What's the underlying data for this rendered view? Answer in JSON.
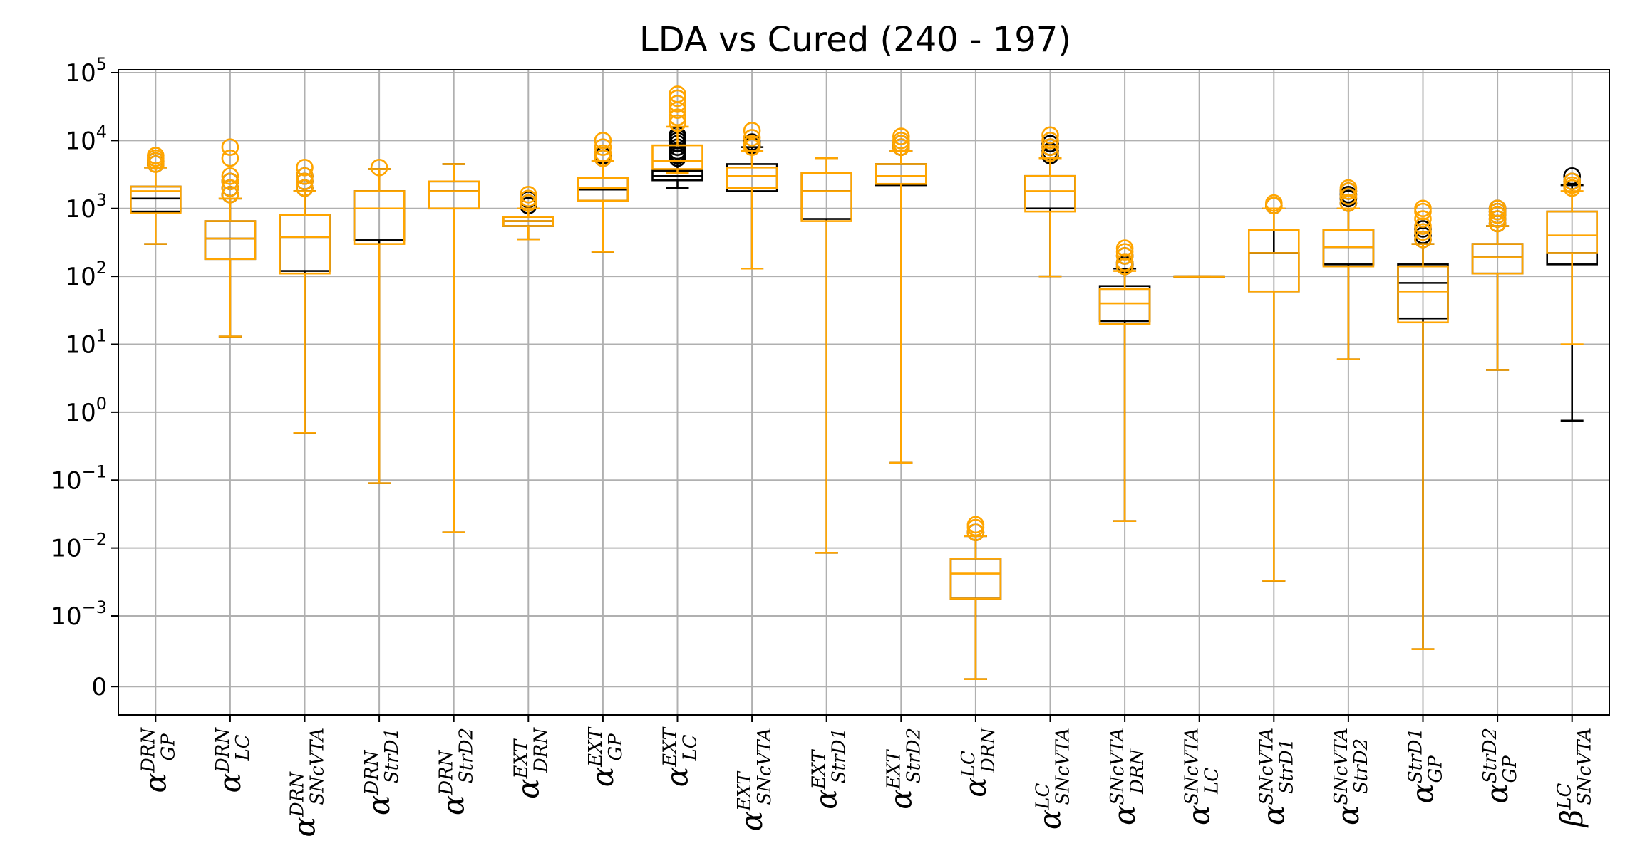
{
  "chart_data": {
    "type": "box",
    "title": "LDA vs Cured (240 - 197)",
    "xlabel": "",
    "ylabel": "",
    "yscale": "symlog",
    "ylim": [
      -0.0004,
      100000
    ],
    "grid": true,
    "colors": {
      "series_a": "#000000",
      "series_b": "#ffa500",
      "grid": "#b0b0b0"
    },
    "ytick_labels": [
      {
        "value": 100000,
        "label": "10",
        "exp": "5"
      },
      {
        "value": 10000,
        "label": "10",
        "exp": "4"
      },
      {
        "value": 1000,
        "label": "10",
        "exp": "3"
      },
      {
        "value": 100,
        "label": "10",
        "exp": "2"
      },
      {
        "value": 10,
        "label": "10",
        "exp": "1"
      },
      {
        "value": 1,
        "label": "10",
        "exp": "0"
      },
      {
        "value": 0.1,
        "label": "10",
        "exp": "−1"
      },
      {
        "value": 0.01,
        "label": "10",
        "exp": "−2"
      },
      {
        "value": 0.001,
        "label": "10",
        "exp": "−3"
      },
      {
        "value": 0,
        "label": "0",
        "exp": ""
      }
    ],
    "categories": [
      {
        "base": "α",
        "sup": "DRN",
        "sub": "GP"
      },
      {
        "base": "α",
        "sup": "DRN",
        "sub": "LC"
      },
      {
        "base": "α",
        "sup": "DRN",
        "sub": "SNcVTA"
      },
      {
        "base": "α",
        "sup": "DRN",
        "sub": "StrD1"
      },
      {
        "base": "α",
        "sup": "DRN",
        "sub": "StrD2"
      },
      {
        "base": "α",
        "sup": "EXT",
        "sub": "DRN"
      },
      {
        "base": "α",
        "sup": "EXT",
        "sub": "GP"
      },
      {
        "base": "α",
        "sup": "EXT",
        "sub": "LC"
      },
      {
        "base": "α",
        "sup": "EXT",
        "sub": "SNcVTA"
      },
      {
        "base": "α",
        "sup": "EXT",
        "sub": "StrD1"
      },
      {
        "base": "α",
        "sup": "EXT",
        "sub": "StrD2"
      },
      {
        "base": "α",
        "sup": "LC",
        "sub": "DRN"
      },
      {
        "base": "α",
        "sup": "LC",
        "sub": "SNcVTA"
      },
      {
        "base": "α",
        "sup": "SNcVTA",
        "sub": "DRN"
      },
      {
        "base": "α",
        "sup": "SNcVTA",
        "sub": "LC"
      },
      {
        "base": "α",
        "sup": "SNcVTA",
        "sub": "StrD1"
      },
      {
        "base": "α",
        "sup": "SNcVTA",
        "sub": "StrD2"
      },
      {
        "base": "α",
        "sup": "StrD1",
        "sub": "GP"
      },
      {
        "base": "α",
        "sup": "StrD2",
        "sub": "GP"
      },
      {
        "base": "β",
        "sup": "LC",
        "sub": "SNcVTA"
      }
    ],
    "series": [
      {
        "color": "#000000",
        "boxes": [
          {
            "whislo": 300,
            "q1": 900,
            "med": 1400,
            "q3": 2100,
            "whishi": 4000,
            "fliers": [
              4500,
              5000
            ]
          },
          {
            "whislo": 13,
            "q1": 180,
            "med": 360,
            "q3": 650,
            "whishi": 1400,
            "fliers": [
              1600,
              2000,
              2500
            ]
          },
          {
            "whislo": 0.5,
            "q1": 120,
            "med": 380,
            "q3": 800,
            "whishi": 1800,
            "fliers": [
              2000,
              2500,
              3000
            ]
          },
          {
            "whislo": 0.09,
            "q1": 340,
            "med": 340,
            "q3": 1800,
            "whishi": 3800,
            "fliers": []
          },
          {
            "whislo": 0.017,
            "q1": 1000,
            "med": 1800,
            "q3": 2500,
            "whishi": 4500,
            "fliers": []
          },
          {
            "whislo": 350,
            "q1": 550,
            "med": 650,
            "q3": 750,
            "whishi": 1000,
            "fliers": [
              1100,
              1200,
              1350
            ]
          },
          {
            "whislo": 230,
            "q1": 1300,
            "med": 1900,
            "q3": 2800,
            "whishi": 5000,
            "fliers": [
              5500,
              6000
            ]
          },
          {
            "whislo": 2000,
            "q1": 2600,
            "med": 3000,
            "q3": 3600,
            "whishi": 5000,
            "fliers": [
              5500,
              6000,
              6500,
              7000,
              8000,
              9000,
              10000,
              11000,
              12000
            ]
          },
          {
            "whislo": 130,
            "q1": 1800,
            "med": 3000,
            "q3": 4500,
            "whishi": 8000,
            "fliers": [
              8500,
              9500
            ]
          },
          {
            "whislo": 0.0085,
            "q1": 700,
            "med": 1800,
            "q3": 3300,
            "whishi": 5500,
            "fliers": []
          },
          {
            "whislo": 0.18,
            "q1": 2200,
            "med": 3000,
            "q3": 4500,
            "whishi": 7000,
            "fliers": [
              8000,
              9000
            ]
          },
          {
            "whislo": 0.0001,
            "q1": 0.0018,
            "med": 0.0018,
            "q3": 0.007,
            "whishi": 0.015,
            "fliers": [
              0.017
            ]
          },
          {
            "whislo": 100,
            "q1": 1000,
            "med": 1000,
            "q3": 3000,
            "whishi": 5500,
            "fliers": [
              6000,
              7000,
              8000,
              9000
            ]
          },
          {
            "whislo": 0.025,
            "q1": 22,
            "med": 22,
            "q3": 72,
            "whishi": 130,
            "fliers": [
              140,
              150,
              160,
              200
            ]
          },
          {
            "whislo": 100,
            "q1": 100,
            "med": 100,
            "q3": 100,
            "whishi": 100,
            "fliers": []
          },
          {
            "whislo": 0.0033,
            "q1": 60,
            "med": 220,
            "q3": 220,
            "whishi": 1000,
            "fliers": [
              1100
            ]
          },
          {
            "whislo": 6,
            "q1": 150,
            "med": 270,
            "q3": 480,
            "whishi": 1000,
            "fliers": [
              1200,
              1400,
              1600,
              1800
            ]
          },
          {
            "whislo": 0.0005,
            "q1": 24,
            "med": 80,
            "q3": 150,
            "whishi": 300,
            "fliers": [
              350,
              400,
              500
            ]
          },
          {
            "whislo": 4.2,
            "q1": 110,
            "med": 190,
            "q3": 300,
            "whishi": 550,
            "fliers": [
              600,
              700,
              800,
              900,
              1000
            ]
          },
          {
            "whislo": 0.75,
            "q1": 150,
            "med": 220,
            "q3": 900,
            "whishi": 2200,
            "fliers": [
              2500,
              3000
            ]
          }
        ]
      },
      {
        "color": "#ffa500",
        "boxes": [
          {
            "whislo": 300,
            "q1": 850,
            "med": 1800,
            "q3": 2100,
            "whishi": 4000,
            "fliers": [
              4500,
              5000,
              5500,
              6000
            ]
          },
          {
            "whislo": 13,
            "q1": 180,
            "med": 360,
            "q3": 650,
            "whishi": 1400,
            "fliers": [
              1600,
              2000,
              2500,
              3000,
              5500,
              8000
            ]
          },
          {
            "whislo": 0.5,
            "q1": 110,
            "med": 380,
            "q3": 800,
            "whishi": 1800,
            "fliers": [
              2000,
              2500,
              3000,
              4000
            ]
          },
          {
            "whislo": 0.09,
            "q1": 300,
            "med": 1000,
            "q3": 1800,
            "whishi": 3800,
            "fliers": [
              4000
            ]
          },
          {
            "whislo": 0.017,
            "q1": 1000,
            "med": 1800,
            "q3": 2500,
            "whishi": 4500,
            "fliers": []
          },
          {
            "whislo": 350,
            "q1": 550,
            "med": 650,
            "q3": 750,
            "whishi": 1000,
            "fliers": [
              1200,
              1400,
              1600
            ]
          },
          {
            "whislo": 230,
            "q1": 1300,
            "med": 2000,
            "q3": 2800,
            "whishi": 5000,
            "fliers": [
              5500,
              6500,
              8000,
              10000
            ]
          },
          {
            "whislo": 3300,
            "q1": 3800,
            "med": 5000,
            "q3": 8500,
            "whishi": 16000,
            "fliers": [
              18000,
              22000,
              28000,
              35000,
              42000,
              48000
            ]
          },
          {
            "whislo": 130,
            "q1": 2000,
            "med": 3000,
            "q3": 4000,
            "whishi": 7000,
            "fliers": [
              8000,
              9000,
              11000,
              14000
            ]
          },
          {
            "whislo": 0.0085,
            "q1": 650,
            "med": 1800,
            "q3": 3300,
            "whishi": 5500,
            "fliers": []
          },
          {
            "whislo": 0.18,
            "q1": 2300,
            "med": 3000,
            "q3": 4500,
            "whishi": 7000,
            "fliers": [
              8000,
              9000,
              10000,
              11500
            ]
          },
          {
            "whislo": 0.0001,
            "q1": 0.0018,
            "med": 0.0042,
            "q3": 0.007,
            "whishi": 0.015,
            "fliers": [
              0.017,
              0.02,
              0.022
            ]
          },
          {
            "whislo": 100,
            "q1": 900,
            "med": 1800,
            "q3": 3000,
            "whishi": 5500,
            "fliers": [
              6500,
              8000,
              10000,
              12000
            ]
          },
          {
            "whislo": 0.025,
            "q1": 20,
            "med": 40,
            "q3": 65,
            "whishi": 120,
            "fliers": [
              140,
              160,
              200,
              230,
              260
            ]
          },
          {
            "whislo": 100,
            "q1": 100,
            "med": 100,
            "q3": 100,
            "whishi": 100,
            "fliers": []
          },
          {
            "whislo": 0.0033,
            "q1": 60,
            "med": 220,
            "q3": 480,
            "whishi": 1000,
            "fliers": [
              1100,
              1200
            ]
          },
          {
            "whislo": 6,
            "q1": 140,
            "med": 270,
            "q3": 480,
            "whishi": 1000,
            "fliers": [
              1200,
              1500,
              1800,
              2000
            ]
          },
          {
            "whislo": 0.0005,
            "q1": 21,
            "med": 60,
            "q3": 140,
            "whishi": 300,
            "fliers": [
              350,
              450,
              550,
              700,
              900,
              1000
            ]
          },
          {
            "whislo": 4.2,
            "q1": 110,
            "med": 190,
            "q3": 300,
            "whishi": 550,
            "fliers": [
              600,
              700,
              800,
              900,
              1000
            ]
          },
          {
            "whislo": 10,
            "q1": 220,
            "med": 400,
            "q3": 900,
            "whishi": 1800,
            "fliers": [
              2000,
              2200,
              2500
            ]
          }
        ]
      }
    ]
  }
}
